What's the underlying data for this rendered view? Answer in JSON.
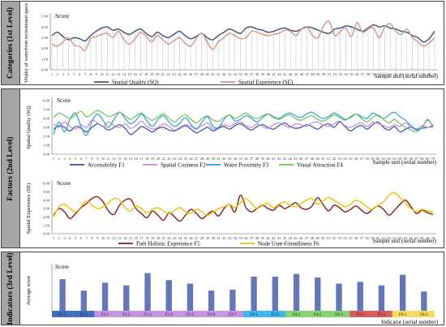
{
  "sections": [
    {
      "label": "Categories (1st Level)"
    },
    {
      "label": "Factors (2nd Level)"
    },
    {
      "label": "Indicators (3rd Level)"
    }
  ],
  "chart_data": [
    {
      "type": "line",
      "title": "Score",
      "ylabel": "Vitality of waterfront recreational space",
      "xlabel": "Sample unit (serial number)",
      "ylim": [
        0,
        5
      ],
      "yticks": [
        "0.00",
        "1.00",
        "2.00",
        "3.00",
        "4.00",
        "5.00"
      ],
      "x": [
        1,
        2,
        3,
        4,
        5,
        6,
        7,
        8,
        9,
        10,
        11,
        12,
        13,
        14,
        15,
        16,
        17,
        18,
        19,
        20,
        21,
        22,
        23,
        24,
        25,
        26,
        27,
        28,
        29,
        30,
        31,
        32,
        33,
        34,
        35,
        36,
        37,
        38,
        39,
        40,
        41,
        42,
        43,
        44,
        45,
        46,
        47,
        48,
        49,
        50,
        51,
        52,
        53,
        54,
        55,
        56,
        57,
        58,
        59,
        60,
        61,
        62,
        63,
        64,
        65,
        66,
        67,
        68,
        69,
        70
      ],
      "legend": "bottom",
      "series": [
        {
          "name": "Spatial Quality (SQ)",
          "color": "#4a5a7a",
          "values": [
            3.2,
            3.5,
            3.1,
            2.8,
            3.0,
            2.9,
            2.7,
            3.2,
            3.6,
            3.9,
            4.0,
            3.7,
            3.8,
            3.5,
            3.3,
            3.6,
            3.8,
            3.4,
            3.1,
            3.5,
            3.2,
            3.0,
            3.3,
            3.6,
            3.2,
            2.9,
            3.1,
            3.4,
            3.0,
            2.8,
            3.2,
            3.5,
            3.8,
            3.6,
            3.4,
            3.9,
            4.0,
            3.8,
            3.7,
            3.5,
            3.6,
            3.8,
            3.9,
            3.7,
            3.6,
            3.8,
            4.0,
            3.9,
            3.7,
            3.5,
            3.4,
            3.8,
            3.9,
            4.1,
            4.0,
            3.8,
            3.6,
            3.9,
            4.2,
            4.0,
            4.1,
            3.9,
            3.8,
            3.6,
            3.5,
            3.2,
            3.0,
            2.6,
            2.9,
            3.6
          ]
        },
        {
          "name": "Spatial Experience (SE)",
          "color": "#d49a8f",
          "values": [
            2.4,
            2.2,
            2.6,
            3.0,
            2.3,
            2.2,
            1.8,
            2.9,
            3.1,
            3.3,
            3.4,
            3.0,
            3.6,
            2.8,
            2.4,
            2.9,
            3.5,
            3.1,
            2.6,
            3.2,
            2.8,
            2.4,
            2.7,
            3.0,
            2.5,
            2.2,
            2.9,
            3.4,
            2.6,
            1.9,
            2.6,
            3.0,
            3.4,
            3.2,
            2.9,
            3.0,
            3.6,
            3.5,
            3.3,
            3.2,
            3.3,
            3.4,
            3.7,
            3.6,
            3.2,
            3.8,
            4.0,
            3.2,
            3.0,
            4.1,
            4.5,
            3.2,
            3.6,
            3.9,
            3.1,
            4.4,
            3.5,
            3.8,
            3.9,
            3.0,
            4.0,
            4.3,
            3.6,
            3.3,
            3.8,
            3.0,
            2.6,
            2.2,
            2.5,
            3.0
          ]
        }
      ]
    },
    {
      "type": "line",
      "title": "Score",
      "ylabel": "Spatial Quality (SQ)",
      "xlabel": "Sample unit (serial number)",
      "ylim": [
        0,
        6
      ],
      "yticks": [
        "0.00",
        "1.00",
        "2.00",
        "3.00",
        "4.00",
        "5.00",
        "6.00"
      ],
      "legend": "bottom",
      "series": [
        {
          "name": "Accessibility F1",
          "color": "#2f4fa5",
          "values": [
            2.8,
            3.2,
            3.0,
            2.6,
            3.1,
            2.9,
            2.5,
            3.0,
            3.4,
            3.1,
            2.7,
            3.0,
            3.3,
            2.9,
            2.2,
            2.6,
            3.1,
            2.8,
            2.5,
            2.9,
            3.0,
            2.7,
            2.6,
            2.9,
            3.2,
            2.8,
            2.4,
            2.7,
            3.0,
            2.6,
            2.9,
            3.1,
            2.8,
            3.2,
            3.4,
            3.0,
            2.7,
            3.1,
            3.3,
            3.0,
            2.8,
            3.2,
            3.5,
            3.1,
            2.9,
            3.0,
            3.3,
            3.1,
            2.8,
            3.2,
            3.4,
            3.0,
            3.6,
            3.1,
            2.6,
            3.0,
            3.2,
            2.8,
            3.3,
            3.6,
            3.0,
            2.7,
            3.1,
            2.5,
            2.8,
            3.0,
            2.7,
            2.9,
            3.0,
            3.1
          ]
        },
        {
          "name": "Spatial Coziness F2",
          "color": "#c784d9",
          "values": [
            3.4,
            3.0,
            3.6,
            3.1,
            2.8,
            3.3,
            3.0,
            3.8,
            3.5,
            3.1,
            3.6,
            3.2,
            3.0,
            3.4,
            2.9,
            3.2,
            3.7,
            3.1,
            2.8,
            3.0,
            3.4,
            3.1,
            2.7,
            3.0,
            3.3,
            3.1,
            2.9,
            3.2,
            3.5,
            2.8,
            3.0,
            3.3,
            3.1,
            3.4,
            3.6,
            3.2,
            3.0,
            3.4,
            3.1,
            2.9,
            3.3,
            3.5,
            3.2,
            3.0,
            3.4,
            3.3,
            3.1,
            3.5,
            3.6,
            3.3,
            3.1,
            3.4,
            3.7,
            3.2,
            3.0,
            3.3,
            3.5,
            3.1,
            3.6,
            3.4,
            3.2,
            3.0,
            3.3,
            3.1,
            3.5,
            3.0,
            2.8,
            3.2,
            3.0,
            3.3
          ]
        },
        {
          "name": "Water Proximity F3",
          "color": "#2a9fe5",
          "values": [
            2.2,
            3.6,
            2.5,
            3.9,
            4.6,
            3.1,
            2.1,
            3.7,
            4.5,
            3.8,
            3.0,
            3.9,
            4.7,
            4.0,
            3.4,
            3.8,
            4.5,
            3.7,
            3.1,
            3.9,
            4.3,
            3.6,
            3.1,
            3.5,
            4.1,
            3.3,
            2.8,
            3.6,
            4.2,
            3.1,
            3.0,
            3.9,
            4.4,
            3.7,
            3.9,
            4.3,
            4.0,
            3.6,
            4.1,
            4.5,
            4.2,
            4.0,
            4.4,
            4.6,
            4.3,
            4.1,
            4.5,
            4.7,
            4.3,
            4.0,
            4.2,
            4.6,
            4.3,
            3.9,
            4.1,
            4.5,
            4.2,
            4.0,
            4.6,
            4.3,
            4.0,
            4.4,
            4.7,
            4.2,
            3.8,
            3.2,
            2.8,
            3.0,
            3.9,
            3.1
          ]
        },
        {
          "name": "Visual Attraction F4",
          "color": "#6cc64a",
          "values": [
            4.1,
            4.6,
            4.3,
            4.0,
            4.4,
            4.8,
            4.2,
            4.5,
            4.9,
            4.6,
            4.2,
            4.4,
            4.7,
            4.3,
            3.9,
            4.3,
            4.6,
            4.1,
            3.8,
            4.2,
            4.5,
            4.0,
            3.6,
            4.1,
            4.4,
            3.9,
            3.5,
            4.0,
            4.3,
            3.8,
            3.7,
            4.1,
            4.4,
            4.0,
            4.3,
            4.6,
            4.2,
            4.0,
            4.3,
            4.5,
            4.1,
            3.9,
            4.2,
            4.4,
            4.0,
            3.8,
            4.1,
            4.3,
            3.9,
            3.7,
            4.0,
            4.4,
            4.1,
            3.8,
            4.2,
            4.5,
            4.0,
            3.6,
            4.1,
            4.4,
            3.9,
            3.5,
            3.9,
            3.4,
            3.0,
            2.7,
            2.5,
            3.0,
            3.8,
            3.2
          ]
        }
      ]
    },
    {
      "type": "line",
      "title": "Score",
      "ylabel": "Spatial Experience (SE)",
      "xlabel": "Sample unit (serial number)",
      "ylim": [
        0,
        6
      ],
      "yticks": [
        "0.00",
        "1.00",
        "2.00",
        "3.00",
        "4.00",
        "5.00",
        "6.00"
      ],
      "legend": "bottom",
      "series": [
        {
          "name": "Path Holistic Experience F5",
          "color": "#8b1a1a",
          "values": [
            2.2,
            3.0,
            2.6,
            1.8,
            2.4,
            3.1,
            3.6,
            4.2,
            4.4,
            3.8,
            2.7,
            2.3,
            3.4,
            4.0,
            4.1,
            3.0,
            2.4,
            1.9,
            2.7,
            2.2,
            1.6,
            2.5,
            2.0,
            1.5,
            2.2,
            2.9,
            2.4,
            1.8,
            2.3,
            2.7,
            2.1,
            3.0,
            3.5,
            2.6,
            4.6,
            3.1,
            2.6,
            3.0,
            3.4,
            3.0,
            2.8,
            3.4,
            3.0,
            3.3,
            3.7,
            3.1,
            2.9,
            3.3,
            4.3,
            3.5,
            2.7,
            3.4,
            3.1,
            2.6,
            2.9,
            3.3,
            2.8,
            2.4,
            2.9,
            3.3,
            2.9,
            2.2,
            2.8,
            3.5,
            4.0,
            3.2,
            2.4,
            2.8,
            2.5,
            2.3
          ]
        },
        {
          "name": "Node User-Friendliness F6",
          "color": "#f2c200",
          "values": [
            2.0,
            3.2,
            3.5,
            3.0,
            2.6,
            3.2,
            3.9,
            3.4,
            3.0,
            3.2,
            3.7,
            4.2,
            4.0,
            3.1,
            2.7,
            3.3,
            3.0,
            2.5,
            2.9,
            3.1,
            2.7,
            2.4,
            2.8,
            3.1,
            2.6,
            2.4,
            2.9,
            2.6,
            2.2,
            2.6,
            3.0,
            3.2,
            3.5,
            3.1,
            3.7,
            4.2,
            3.6,
            3.0,
            3.4,
            3.6,
            3.1,
            3.5,
            3.8,
            3.4,
            3.2,
            3.6,
            4.0,
            4.2,
            3.5,
            3.9,
            4.3,
            4.0,
            3.6,
            3.2,
            3.5,
            4.0,
            3.7,
            3.2,
            2.9,
            3.4,
            3.8,
            4.6,
            4.9,
            4.3,
            3.6,
            3.0,
            2.6,
            2.9,
            2.7,
            2.6
          ]
        }
      ]
    },
    {
      "type": "bar",
      "title": "Score",
      "ylabel": "Average score",
      "xlabel": "Indicator (serial number)",
      "ylim": [
        0,
        5
      ],
      "categories": [
        "F1-1",
        "F1-2",
        "F2-1",
        "F2-2",
        "F2-3",
        "F2-4",
        "F2-5",
        "F2-6",
        "F2-7",
        "F3-1",
        "F3-2",
        "F4-1",
        "F4-2",
        "F4-3",
        "F5-1",
        "F5-2",
        "F6-1",
        "F6-2"
      ],
      "values": [
        3.6,
        2.3,
        3.2,
        2.9,
        4.3,
        3.5,
        3.1,
        2.3,
        2.4,
        3.9,
        3.9,
        4.2,
        3.8,
        3.1,
        3.3,
        2.9,
        4.1,
        2.2
      ],
      "category_colors": [
        "#3f6fbf",
        "#3f6fbf",
        "#c894df",
        "#c894df",
        "#c894df",
        "#c894df",
        "#c894df",
        "#c894df",
        "#c894df",
        "#3ab7ee",
        "#3ab7ee",
        "#84d470",
        "#84d470",
        "#84d470",
        "#d95b5b",
        "#d95b5b",
        "#f6dc5a",
        "#f6dc5a"
      ],
      "bar_color": "#5b70b5"
    }
  ]
}
